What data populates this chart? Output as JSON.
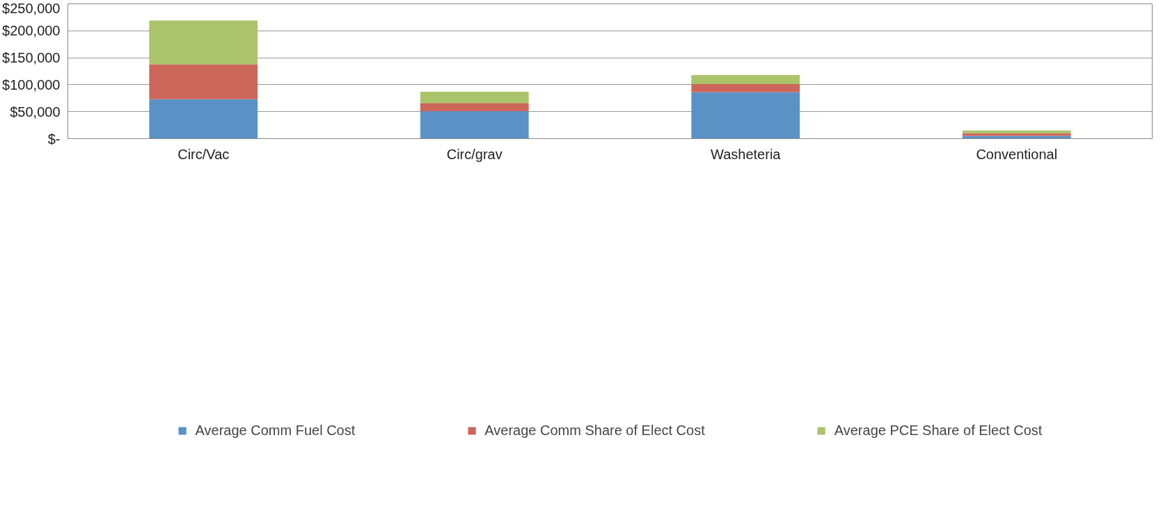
{
  "chart_data": {
    "type": "bar",
    "stacked": true,
    "categories": [
      "Circ/Vac",
      "Circ/grav",
      "Washeteria",
      "Conventional"
    ],
    "series": [
      {
        "name": "Average Comm Fuel Cost",
        "color": "#5b92c6",
        "values": [
          73000,
          51000,
          86000,
          5000
        ]
      },
      {
        "name": "Average Comm Share of Elect Cost",
        "color": "#cc665a",
        "values": [
          65000,
          15000,
          15000,
          5000
        ]
      },
      {
        "name": "Average PCE Share of Elect Cost",
        "color": "#abc36a",
        "values": [
          81000,
          21000,
          17000,
          5000
        ]
      }
    ],
    "ylim": [
      0,
      250000
    ],
    "yticks": [
      {
        "value": 0,
        "label": "$-"
      },
      {
        "value": 50000,
        "label": "$50,000"
      },
      {
        "value": 100000,
        "label": "$100,000"
      },
      {
        "value": 150000,
        "label": "$150,000"
      },
      {
        "value": 200000,
        "label": "$200,000"
      },
      {
        "value": 250000,
        "label": "$250,000"
      }
    ],
    "grid": "y",
    "legend": "bottom"
  }
}
